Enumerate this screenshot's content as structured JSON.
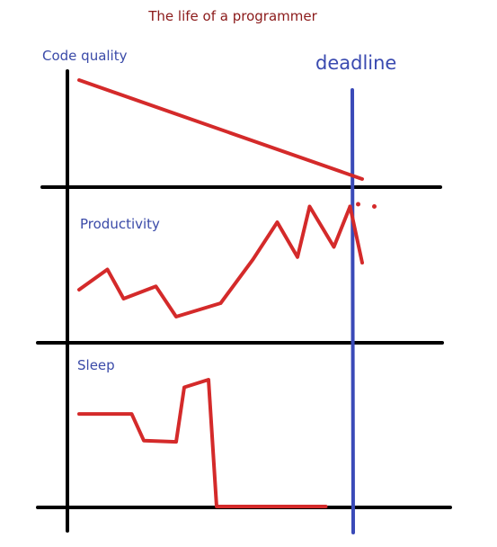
{
  "title": "The life of a programmer",
  "colors": {
    "axis": "#000000",
    "line": "#d42a2a",
    "deadline": "#3a4ab8",
    "label": "#3a4aa8",
    "title": "#8b1a1a"
  },
  "deadline": {
    "label": "deadline",
    "x": 0.62
  },
  "chart_data": [
    {
      "type": "line",
      "title": "Code quality",
      "series": [
        {
          "x": [
            0.0,
            0.7
          ],
          "y": [
            1.0,
            0.0
          ]
        }
      ],
      "extra_points": []
    },
    {
      "type": "line",
      "title": "Productivity",
      "series": [
        {
          "x": [
            0.0,
            0.07,
            0.11,
            0.19,
            0.24,
            0.35,
            0.43,
            0.49,
            0.54,
            0.57,
            0.63,
            0.67
          ],
          "y": [
            0.24,
            0.42,
            0.16,
            0.27,
            0.0,
            0.12,
            0.51,
            0.84,
            0.53,
            0.98,
            0.62,
            0.98
          ]
        },
        {
          "x": [
            0.67,
            0.7
          ],
          "y": [
            0.98,
            0.48
          ]
        }
      ],
      "extra_points": [
        {
          "x": 0.69,
          "y": 1.0
        },
        {
          "x": 0.73,
          "y": 0.98
        }
      ]
    },
    {
      "type": "line",
      "title": "Sleep",
      "series": [
        {
          "x": [
            0.0,
            0.13,
            0.16,
            0.24,
            0.26,
            0.32,
            0.34,
            0.58
          ],
          "y": [
            0.73,
            0.73,
            0.52,
            0.51,
            0.94,
            1.0,
            0.0,
            0.0
          ]
        },
        {
          "x": [
            0.58,
            0.61
          ],
          "y": [
            0.0,
            0.0
          ]
        }
      ],
      "extra_points": []
    }
  ]
}
